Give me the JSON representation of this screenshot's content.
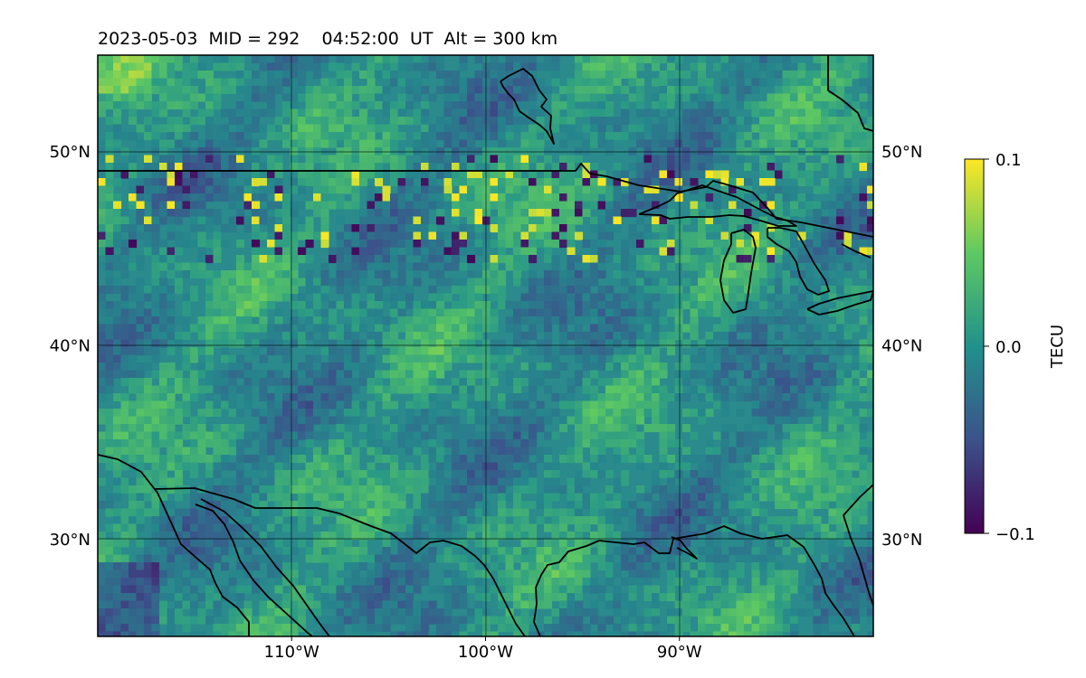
{
  "title": "2023-05-03  MID = 292    04:52:00  UT  Alt = 300 km",
  "map": {
    "lon_range": [
      -120,
      -80
    ],
    "lat_range": [
      25,
      55
    ],
    "gridlines": true,
    "lon_ticks": [
      {
        "value": -110,
        "label": "110°W"
      },
      {
        "value": -100,
        "label": "100°W"
      },
      {
        "value": -90,
        "label": "90°W"
      }
    ],
    "lat_ticks": [
      {
        "value": 50,
        "label": "50°N"
      },
      {
        "value": 40,
        "label": "40°N"
      },
      {
        "value": 30,
        "label": "30°N"
      }
    ],
    "coastline_color": "#000000",
    "colormap": "viridis"
  },
  "colorbar": {
    "label": "TECU",
    "min": -0.1,
    "max": 0.1,
    "ticks": [
      {
        "value": 0.1,
        "label": "0.1"
      },
      {
        "value": 0.0,
        "label": "0.0"
      },
      {
        "value": -0.1,
        "label": "−0.1"
      }
    ],
    "colors": [
      "#440154",
      "#3b528b",
      "#21918c",
      "#5ec962",
      "#fde725"
    ]
  }
}
